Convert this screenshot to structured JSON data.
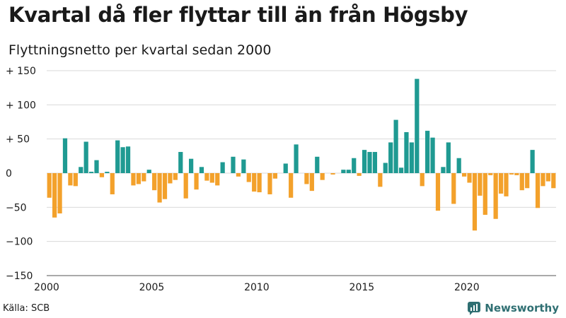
{
  "title": "Kvartal då fler flyttar till än från Högsby",
  "subtitle": "Flyttningsnetto per kvartal sedan 2000",
  "source": "Källa: SCB",
  "brand": "Newsworthy",
  "colors": {
    "positive": "#1f9a92",
    "negative": "#f3a12b",
    "grid": "#d9d9d9",
    "brand": "#2f6f72"
  },
  "chart_data": {
    "type": "bar",
    "title": "Kvartal då fler flyttar till än från Högsby",
    "subtitle": "Flyttningsnetto per kvartal sedan 2000",
    "ylim": [
      -150,
      150
    ],
    "y_ticks": [
      {
        "value": 150,
        "label": "+ 150"
      },
      {
        "value": 100,
        "label": "+ 100"
      },
      {
        "value": 50,
        "label": "+  50"
      },
      {
        "value": 0,
        "label": "0"
      },
      {
        "value": -50,
        "label": "−50"
      },
      {
        "value": -100,
        "label": "−100"
      },
      {
        "value": -150,
        "label": "−150"
      }
    ],
    "x_ticks": [
      {
        "year": 2000,
        "label": "2000"
      },
      {
        "year": 2005,
        "label": "2005"
      },
      {
        "year": 2010,
        "label": "2010"
      },
      {
        "year": 2015,
        "label": "2015"
      },
      {
        "year": 2020,
        "label": "2020"
      }
    ],
    "start_year": 2000,
    "grid": true,
    "series": [
      {
        "values": [
          -36,
          -65,
          -59,
          51,
          -18,
          -19,
          9,
          46,
          2,
          19,
          -6,
          2,
          -31,
          48,
          38,
          39,
          -18,
          -16,
          -12,
          5,
          -25,
          -43,
          -38,
          -15,
          -10,
          31,
          -37,
          21,
          -24,
          9,
          -11,
          -14,
          -18,
          16,
          0,
          24,
          -5,
          20,
          -13,
          -27,
          -28,
          0,
          -31,
          -8,
          0,
          14,
          -36,
          42,
          0,
          -16,
          -26,
          24,
          -10,
          0,
          -2,
          0,
          5,
          5,
          22,
          -4,
          34,
          31,
          31,
          -20,
          15,
          45,
          78,
          8,
          60,
          45,
          138,
          -19,
          62,
          52,
          -55,
          9,
          45,
          -45,
          22,
          -5,
          -14,
          -84,
          -33,
          -61,
          -3,
          -67,
          -30,
          -34,
          -2,
          -3,
          -25,
          -22,
          34,
          -51,
          -19,
          -12,
          -22
        ]
      }
    ]
  }
}
